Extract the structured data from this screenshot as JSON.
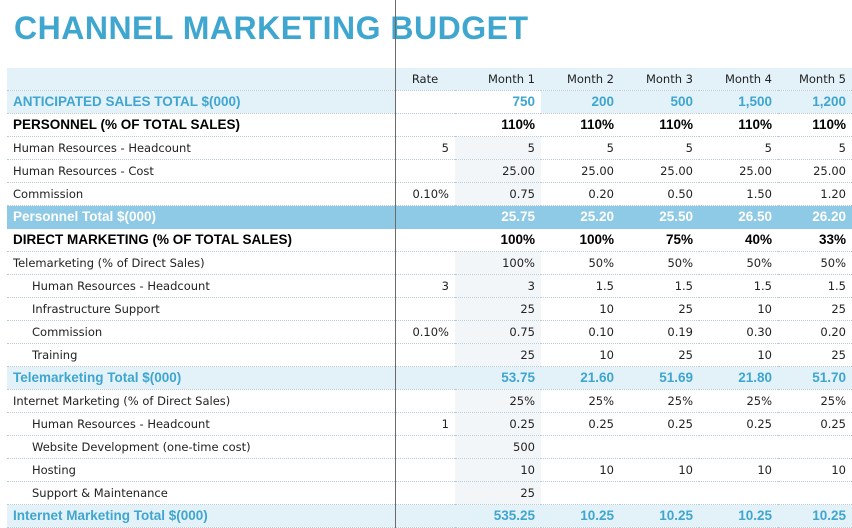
{
  "title": "CHANNEL MARKETING BUDGET",
  "columns": [
    "",
    "Rate",
    "Month 1",
    "Month 2",
    "Month 3",
    "Month 4",
    "Month 5"
  ],
  "rows": [
    {
      "style": "anticipated",
      "label": "ANTICIPATED SALES TOTAL $(000)",
      "rate": "",
      "values": [
        "750",
        "200",
        "500",
        "1,500",
        "1,200"
      ]
    },
    {
      "style": "section",
      "label": "PERSONNEL (% OF TOTAL SALES)",
      "rate": "",
      "values": [
        "110%",
        "110%",
        "110%",
        "110%",
        "110%"
      ]
    },
    {
      "style": "plain",
      "label": "Human Resources - Headcount",
      "rate": "5",
      "values": [
        "5",
        "5",
        "5",
        "5",
        "5"
      ]
    },
    {
      "style": "plain",
      "label": "Human Resources - Cost",
      "rate": "",
      "values": [
        "25.00",
        "25.00",
        "25.00",
        "25.00",
        "25.00"
      ]
    },
    {
      "style": "plain",
      "label": "Commission",
      "rate": "0.10%",
      "values": [
        "0.75",
        "0.20",
        "0.50",
        "1.50",
        "1.20"
      ]
    },
    {
      "style": "band",
      "label": "Personnel Total $(000)",
      "rate": "",
      "values": [
        "25.75",
        "25.20",
        "25.50",
        "26.50",
        "26.20"
      ]
    },
    {
      "style": "section",
      "label": "DIRECT MARKETING (% OF TOTAL SALES)",
      "rate": "",
      "values": [
        "100%",
        "100%",
        "75%",
        "40%",
        "33%"
      ]
    },
    {
      "style": "plain",
      "label": "Telemarketing (% of Direct Sales)",
      "rate": "",
      "values": [
        "100%",
        "50%",
        "50%",
        "50%",
        "50%"
      ]
    },
    {
      "style": "indent",
      "label": "Human Resources - Headcount",
      "rate": "3",
      "values": [
        "3",
        "1.5",
        "1.5",
        "1.5",
        "1.5"
      ]
    },
    {
      "style": "indent",
      "label": "Infrastructure Support",
      "rate": "",
      "values": [
        "25",
        "10",
        "25",
        "10",
        "25"
      ]
    },
    {
      "style": "indent",
      "label": "Commission",
      "rate": "0.10%",
      "values": [
        "0.75",
        "0.10",
        "0.19",
        "0.30",
        "0.20"
      ]
    },
    {
      "style": "indent",
      "label": "Training",
      "rate": "",
      "values": [
        "25",
        "10",
        "25",
        "10",
        "25"
      ]
    },
    {
      "style": "lightband",
      "label": "Telemarketing Total $(000)",
      "rate": "",
      "values": [
        "53.75",
        "21.60",
        "51.69",
        "21.80",
        "51.70"
      ]
    },
    {
      "style": "plain",
      "label": "Internet Marketing (% of Direct Sales)",
      "rate": "",
      "values": [
        "25%",
        "25%",
        "25%",
        "25%",
        "25%"
      ]
    },
    {
      "style": "indent",
      "label": "Human Resources - Headcount",
      "rate": "1",
      "values": [
        "0.25",
        "0.25",
        "0.25",
        "0.25",
        "0.25"
      ]
    },
    {
      "style": "indent",
      "label": "Website Development (one-time cost)",
      "rate": "",
      "values": [
        "500",
        "",
        "",
        "",
        ""
      ]
    },
    {
      "style": "indent",
      "label": "Hosting",
      "rate": "",
      "values": [
        "10",
        "10",
        "10",
        "10",
        "10"
      ]
    },
    {
      "style": "indent",
      "label": "Support & Maintenance",
      "rate": "",
      "values": [
        "25",
        "",
        "",
        "",
        ""
      ]
    },
    {
      "style": "lightband",
      "label": "Internet Marketing Total $(000)",
      "rate": "",
      "values": [
        "535.25",
        "10.25",
        "10.25",
        "10.25",
        "10.25"
      ]
    }
  ]
}
